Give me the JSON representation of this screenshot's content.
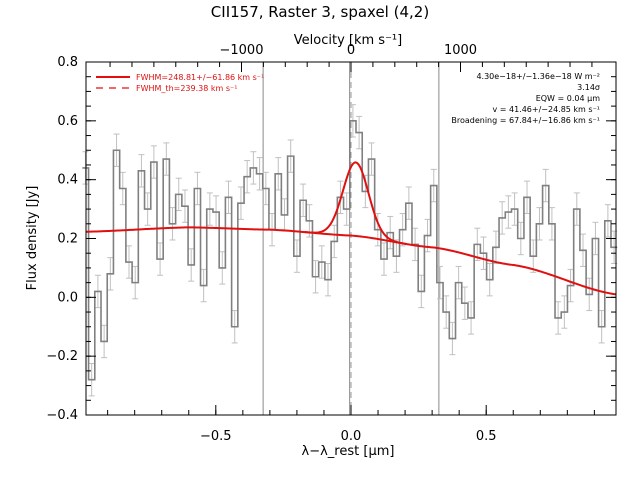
{
  "chart_data": {
    "type": "line",
    "title": "CII157, Raster 3, spaxel (4,2)",
    "xlabel": "λ−λ_rest [μm]",
    "ylabel": "Flux density [Jy]",
    "top_xlabel": "Velocity [km s⁻¹]",
    "xlim": [
      -0.98,
      0.98
    ],
    "ylim": [
      -0.4,
      0.8
    ],
    "x_ticks": [
      -0.5,
      0.0,
      0.5
    ],
    "x_tick_labels": [
      "−0.5",
      "0.0",
      "0.5"
    ],
    "y_ticks": [
      -0.4,
      -0.2,
      0.0,
      0.2,
      0.4,
      0.6,
      0.8
    ],
    "y_tick_labels": [
      "−0.4",
      "−0.2",
      "0.0",
      "0.2",
      "0.4",
      "0.6",
      "0.8"
    ],
    "top_ticks": [
      -1000,
      0,
      1000
    ],
    "top_tick_labels": [
      "−1000",
      "0",
      "1000"
    ],
    "vertical_lines_solid": [
      -0.325,
      -0.005,
      0.325
    ],
    "vertical_line_dashed": 0.0,
    "legend": [
      {
        "label": "FWHM=248.81+/−61.86 km s⁻¹",
        "style": "solid",
        "color": "#e01010"
      },
      {
        "label": "FWHM_th=239.38 km s⁻¹",
        "style": "dashed",
        "color": "#e01010"
      }
    ],
    "annotations": [
      "4.30e−18+/−1.36e−18 W m⁻²",
      "3.14σ",
      "EQW = 0.04 μm",
      "v = 41.46+/−24.85 km s⁻¹",
      "Broadening = 67.84+/−16.86 km s⁻¹"
    ],
    "step_x": [
      -0.982,
      -0.959,
      -0.936,
      -0.913,
      -0.89,
      -0.867,
      -0.844,
      -0.821,
      -0.798,
      -0.775,
      -0.752,
      -0.729,
      -0.706,
      -0.683,
      -0.66,
      -0.637,
      -0.614,
      -0.591,
      -0.568,
      -0.545,
      -0.522,
      -0.499,
      -0.476,
      -0.453,
      -0.43,
      -0.407,
      -0.384,
      -0.361,
      -0.338,
      -0.315,
      -0.292,
      -0.269,
      -0.246,
      -0.223,
      -0.2,
      -0.177,
      -0.154,
      -0.131,
      -0.108,
      -0.085,
      -0.062,
      -0.039,
      -0.016,
      0.007,
      0.03,
      0.053,
      0.076,
      0.099,
      0.122,
      0.145,
      0.168,
      0.191,
      0.214,
      0.237,
      0.26,
      0.283,
      0.306,
      0.329,
      0.352,
      0.375,
      0.398,
      0.421,
      0.444,
      0.467,
      0.49,
      0.513,
      0.536,
      0.559,
      0.582,
      0.605,
      0.628,
      0.651,
      0.674,
      0.697,
      0.72,
      0.743,
      0.766,
      0.789,
      0.812,
      0.835,
      0.858,
      0.881,
      0.904,
      0.927,
      0.95,
      0.973
    ],
    "step_y": [
      0.44,
      -0.28,
      0.02,
      -0.15,
      0.08,
      0.5,
      0.37,
      0.12,
      0.05,
      0.43,
      0.3,
      0.46,
      0.13,
      0.47,
      0.25,
      0.35,
      0.31,
      0.11,
      0.37,
      0.04,
      0.3,
      0.29,
      0.1,
      0.34,
      -0.1,
      0.32,
      0.41,
      0.44,
      0.42,
      0.37,
      0.23,
      0.42,
      0.28,
      0.48,
      0.14,
      0.33,
      0.26,
      0.07,
      0.12,
      0.06,
      0.19,
      0.34,
      0.3,
      0.6,
      0.56,
      0.36,
      0.47,
      0.23,
      0.13,
      0.22,
      0.14,
      0.23,
      0.32,
      0.18,
      0.02,
      0.21,
      0.38,
      0.05,
      -0.05,
      -0.14,
      0.05,
      -0.02,
      -0.07,
      0.18,
      0.15,
      0.06,
      0.17,
      0.27,
      0.29,
      0.3,
      0.2,
      0.34,
      0.14,
      0.25,
      0.38,
      0.25,
      -0.07,
      -0.05,
      0.04,
      0.3,
      0.16,
      0.01,
      0.2,
      -0.1,
      0.26,
      0.17
    ],
    "error_bar": 0.055,
    "fit_color": "#e01010",
    "data_color": "#808080",
    "fit": {
      "continuum_points": [
        [
          -0.98,
          0.223
        ],
        [
          -0.6,
          0.238
        ],
        [
          -0.3,
          0.23
        ],
        [
          0.0,
          0.21
        ],
        [
          0.3,
          0.17
        ],
        [
          0.6,
          0.11
        ],
        [
          0.98,
          0.01
        ]
      ],
      "line_center": 0.0175,
      "line_peak": 0.25,
      "line_sigma": 0.047
    }
  }
}
